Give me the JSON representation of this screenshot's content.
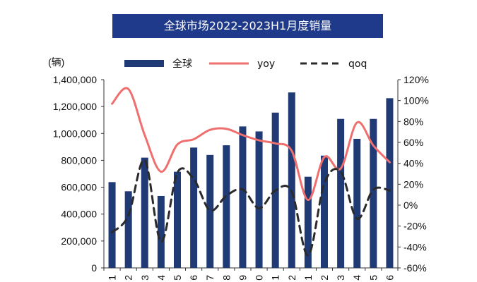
{
  "chart_data": {
    "type": "bar",
    "title": "全球市场2022-2023H1月度销量",
    "ylabel": "(辆)",
    "categories": [
      "1",
      "2",
      "3",
      "4",
      "5",
      "6",
      "7",
      "8",
      "9",
      "0",
      "1",
      "2",
      "1",
      "2",
      "3",
      "4",
      "5",
      "6"
    ],
    "series": [
      {
        "name": "全球",
        "type": "bar",
        "axis": "left",
        "color": "#1f3a75",
        "values": [
          638000,
          570000,
          820000,
          535000,
          715000,
          895000,
          840000,
          912000,
          1052000,
          1015000,
          1155000,
          1305000,
          678000,
          835000,
          1108000,
          960000,
          1108000,
          1262000
        ]
      },
      {
        "name": "yoy",
        "type": "line",
        "axis": "right",
        "color": "#ef6f6f",
        "values": [
          97,
          111,
          67,
          32,
          58,
          63,
          72,
          73,
          67,
          62,
          59,
          52,
          5,
          46,
          35,
          79,
          57,
          41
        ]
      },
      {
        "name": "qoq",
        "type": "line",
        "axis": "right",
        "color": "#2b2b2b",
        "dashed": true,
        "values": [
          -26,
          -10,
          43,
          -35,
          31,
          25,
          -5,
          9,
          15,
          -3,
          14,
          13,
          -48,
          21,
          32,
          -13,
          15,
          14
        ]
      }
    ],
    "left_axis": {
      "min": 0,
      "max": 1400000,
      "ticks": [
        "0",
        "200,000",
        "400,000",
        "600,000",
        "800,000",
        "1,000,000",
        "1,200,000",
        "1,400,000"
      ]
    },
    "right_axis": {
      "min": -60,
      "max": 120,
      "ticks": [
        "-60%",
        "-40%",
        "-20%",
        "0%",
        "20%",
        "40%",
        "60%",
        "80%",
        "100%",
        "120%"
      ]
    },
    "legend": [
      "全球",
      "yoy",
      "qoq"
    ],
    "legend_position": "top"
  }
}
